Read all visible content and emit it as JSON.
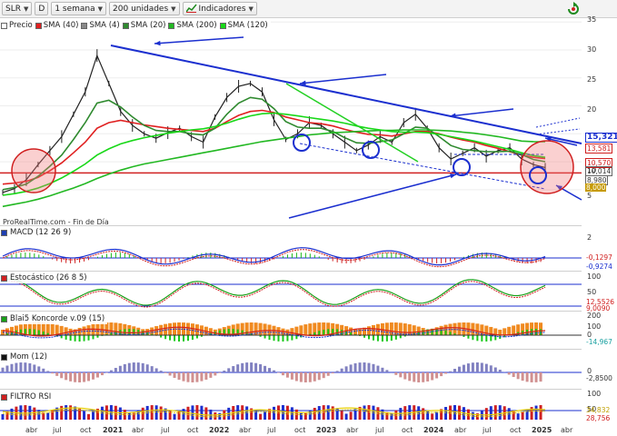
{
  "toolbar": {
    "symbol": "SLR",
    "d_button": "D",
    "timeframe": "1 semana",
    "units": "200 unidades",
    "indicators": "Indicadores"
  },
  "main_panel": {
    "legend": [
      {
        "label": "Precio",
        "color": "#ffffff"
      },
      {
        "label": "SMA (40)",
        "color": "#e02020"
      },
      {
        "label": "SMA (4)",
        "color": "#888888"
      },
      {
        "label": "SMA (20)",
        "color": "#2f8a2f"
      },
      {
        "label": "SMA (200)",
        "color": "#22b822"
      },
      {
        "label": "SMA (120)",
        "color": "#18d818"
      }
    ],
    "source": "ProRealTime.com - Fin de Día",
    "axis_ticks": [
      "35",
      "30",
      "25",
      "20",
      "15",
      "10",
      "5"
    ],
    "tags": [
      {
        "text": "15,321",
        "color": "#1b2fcf",
        "bg": "#ffffff"
      },
      {
        "text": "13,581",
        "color": "#d02020",
        "bg": "#ffffff"
      },
      {
        "text": "10,570",
        "color": "#d02020",
        "bg": "#ffffff"
      },
      {
        "text": "10,014",
        "color": "#333333",
        "bg": "#ffffff"
      },
      {
        "text": "8,980",
        "color": "#333333",
        "bg": "#ffffff"
      },
      {
        "text": "8,000",
        "color": "#ffffff",
        "bg": "#c69a00"
      }
    ]
  },
  "chart_data": [
    {
      "type": "line",
      "title": "",
      "x_axis_labels": [
        "abr",
        "jul",
        "oct",
        "2021",
        "abr",
        "jul",
        "oct",
        "2022",
        "abr",
        "jul",
        "oct",
        "2023",
        "abr",
        "jul",
        "oct",
        "2024",
        "abr",
        "jul",
        "oct",
        "2025",
        "abr"
      ],
      "y_ticks": [
        5,
        10,
        15,
        20,
        25,
        30,
        35
      ],
      "ylim": [
        2,
        36
      ],
      "series": [
        {
          "name": "Precio",
          "color": "#222222",
          "values": [
            4.5,
            5.2,
            6.8,
            9.5,
            12.0,
            14.5,
            18.5,
            22.5,
            29.0,
            24.0,
            19.0,
            16.5,
            15.0,
            14.2,
            15.2,
            16.0,
            14.5,
            13.5,
            18.0,
            21.5,
            23.5,
            24.0,
            22.5,
            17.5,
            14.0,
            15.0,
            17.0,
            16.5,
            15.0,
            13.5,
            12.0,
            13.0,
            14.5,
            13.5,
            17.0,
            18.5,
            16.0,
            12.5,
            10.5,
            11.5,
            12.5,
            11.0,
            12.0,
            12.5,
            10.5,
            9.5,
            8.98
          ]
        },
        {
          "name": "SMA (40)",
          "color": "#e02020",
          "values": [
            6.0,
            6.2,
            6.5,
            7.2,
            8.4,
            9.8,
            11.6,
            13.5,
            16.0,
            17.0,
            17.4,
            17.0,
            16.6,
            16.3,
            16.0,
            15.8,
            15.6,
            15.4,
            16.0,
            17.2,
            18.3,
            19.0,
            19.2,
            18.8,
            18.0,
            17.5,
            17.0,
            16.8,
            16.4,
            15.8,
            15.3,
            14.9,
            14.8,
            14.6,
            15.0,
            15.4,
            15.4,
            15.0,
            14.4,
            13.9,
            13.5,
            12.9,
            12.4,
            11.8,
            11.2,
            10.8,
            10.57
          ]
        },
        {
          "name": "SMA (20)",
          "color": "#2f8a2f",
          "values": [
            5.0,
            5.4,
            6.0,
            7.4,
            9.2,
            11.2,
            14.0,
            17.0,
            20.5,
            21.0,
            19.8,
            18.0,
            16.5,
            15.6,
            15.4,
            15.4,
            15.0,
            14.8,
            16.0,
            18.5,
            20.5,
            21.5,
            21.2,
            19.5,
            17.2,
            16.2,
            16.0,
            16.0,
            15.4,
            14.3,
            13.4,
            13.3,
            13.6,
            13.9,
            15.0,
            16.2,
            16.0,
            14.5,
            12.9,
            12.2,
            12.0,
            11.8,
            11.8,
            11.9,
            11.3,
            10.4,
            10.01
          ]
        },
        {
          "name": "SMA (200)",
          "color": "#22b822",
          "values": [
            2.0,
            2.4,
            2.8,
            3.3,
            3.9,
            4.6,
            5.3,
            6.1,
            7.0,
            7.8,
            8.5,
            9.1,
            9.6,
            10.0,
            10.4,
            10.8,
            11.2,
            11.6,
            12.0,
            12.4,
            12.8,
            13.2,
            13.6,
            13.9,
            14.2,
            14.5,
            14.8,
            15.0,
            15.2,
            15.3,
            15.4,
            15.5,
            15.6,
            15.6,
            15.7,
            15.7,
            15.7,
            15.6,
            15.5,
            15.3,
            15.1,
            14.8,
            14.5,
            14.1,
            13.7,
            13.6,
            13.58
          ]
        },
        {
          "name": "SMA (120)",
          "color": "#18d818",
          "values": [
            4.0,
            4.3,
            4.7,
            5.3,
            6.1,
            7.1,
            8.3,
            9.6,
            11.2,
            12.3,
            13.2,
            13.8,
            14.3,
            14.7,
            15.1,
            15.4,
            15.7,
            15.9,
            16.3,
            16.9,
            17.6,
            18.2,
            18.6,
            18.7,
            18.5,
            18.2,
            17.9,
            17.6,
            17.3,
            16.9,
            16.4,
            16.0,
            15.7,
            15.4,
            15.3,
            15.3,
            15.2,
            14.9,
            14.5,
            14.1,
            13.7,
            13.2,
            12.7,
            12.2,
            11.6,
            11.1,
            10.8
          ]
        }
      ]
    }
  ],
  "indicators": [
    {
      "label": "MACD (12 26 9)",
      "icon_color": "#1e3fb0",
      "ticks": [
        "2",
        "0"
      ],
      "tags": [
        {
          "text": "-0,1297",
          "color": "#d02020"
        },
        {
          "text": "-0,9274",
          "color": "#1b2fcf"
        }
      ]
    },
    {
      "label": "Estocástico (26 8 5)",
      "icon_color": "#d02020",
      "ticks": [
        "100",
        "50"
      ],
      "tags": [
        {
          "text": "12,5526",
          "color": "#d02020"
        },
        {
          "text": "9,0090",
          "color": "#d02020"
        }
      ]
    },
    {
      "label": "Blai5 Koncorde v.09 (15)",
      "icon_color": "#18a018",
      "ticks": [
        "200",
        "100",
        "0"
      ],
      "tags": [
        {
          "text": "-14,967",
          "color": "#18a0a0"
        }
      ]
    },
    {
      "label": "Mom (12)",
      "icon_color": "#111111",
      "ticks": [
        "0"
      ],
      "tags": [
        {
          "text": "-2,8500",
          "color": "#333333"
        }
      ]
    },
    {
      "label": "FILTRO RSI",
      "icon_color": "#d02020",
      "ticks": [
        "100",
        "50"
      ],
      "tags": [
        {
          "text": "34,832",
          "color": "#c0a000"
        },
        {
          "text": "28,756",
          "color": "#d02020"
        }
      ]
    }
  ]
}
